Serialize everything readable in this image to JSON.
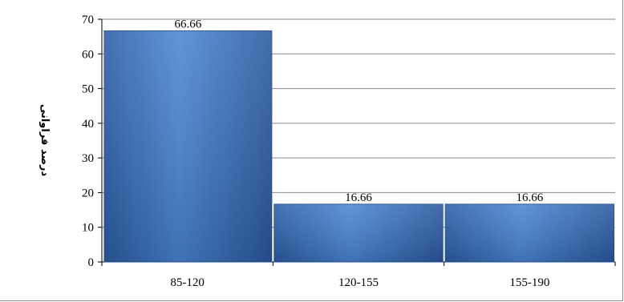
{
  "chart_data": {
    "type": "bar",
    "categories": [
      "85-120",
      "120-155",
      "155-190"
    ],
    "values": [
      66.66,
      16.66,
      16.66
    ],
    "value_labels": [
      "66.66",
      "16.66",
      "16.66"
    ],
    "title": "",
    "xlabel": "",
    "ylabel": "درصد فراوانی",
    "ylim": [
      0,
      70
    ],
    "yticks": [
      0,
      10,
      20,
      30,
      40,
      50,
      60,
      70
    ],
    "grid": true,
    "legend": "none",
    "bar_color": "#3a73c0"
  }
}
